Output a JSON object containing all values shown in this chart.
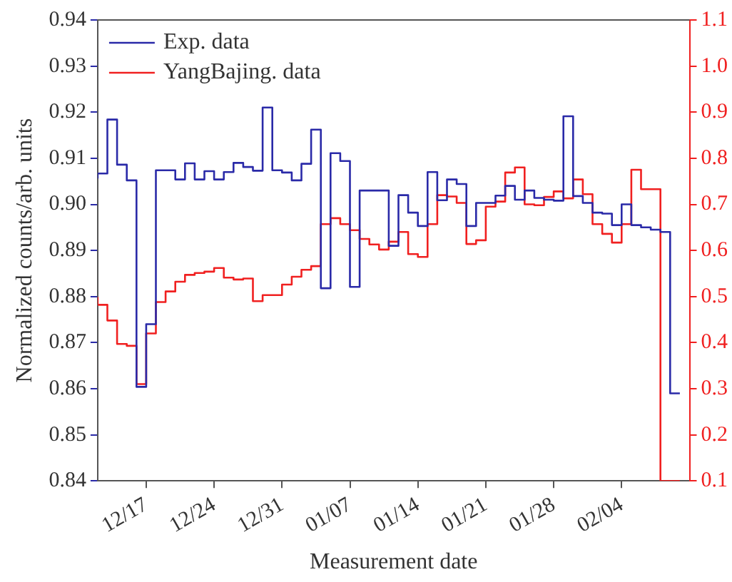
{
  "chart_data": {
    "type": "step",
    "xlabel": "Measurement date",
    "ylabel": "Normalized counts/arb. units",
    "legend": "top left",
    "categories": [
      null,
      null,
      null,
      null,
      null,
      "12/17",
      null,
      null,
      null,
      null,
      null,
      null,
      "12/24",
      null,
      null,
      null,
      null,
      null,
      null,
      "12/31",
      null,
      null,
      null,
      null,
      null,
      null,
      "01/07",
      null,
      null,
      null,
      null,
      null,
      null,
      "01/14",
      null,
      null,
      null,
      null,
      null,
      null,
      "01/21",
      null,
      null,
      null,
      null,
      null,
      null,
      "01/28",
      null,
      null,
      null,
      null,
      null,
      null,
      "02/04",
      null,
      null,
      null,
      null,
      null,
      null
    ],
    "ylim": [
      0.84,
      0.94
    ],
    "yticks": [
      {
        "value": 0.84,
        "label": "0.84"
      },
      {
        "value": 0.85,
        "label": "0.85"
      },
      {
        "value": 0.86,
        "label": "0.86"
      },
      {
        "value": 0.87,
        "label": "0.87"
      },
      {
        "value": 0.88,
        "label": "0.88"
      },
      {
        "value": 0.89,
        "label": "0.89"
      },
      {
        "value": 0.9,
        "label": "0.90"
      },
      {
        "value": 0.91,
        "label": "0.91"
      },
      {
        "value": 0.92,
        "label": "0.92"
      },
      {
        "value": 0.93,
        "label": "0.93"
      },
      {
        "value": 0.94,
        "label": "0.94"
      }
    ],
    "y2lim": [
      0.1,
      1.1
    ],
    "y2ticks": [
      {
        "value": 0.1,
        "label": "0.1"
      },
      {
        "value": 0.2,
        "label": "0.2"
      },
      {
        "value": 0.3,
        "label": "0.3"
      },
      {
        "value": 0.4,
        "label": "0.4"
      },
      {
        "value": 0.5,
        "label": "0.5"
      },
      {
        "value": 0.6,
        "label": "0.6"
      },
      {
        "value": 0.7,
        "label": "0.7"
      },
      {
        "value": 0.8,
        "label": "0.8"
      },
      {
        "value": 0.9,
        "label": "0.9"
      },
      {
        "value": 1,
        "label": "1.0"
      },
      {
        "value": 1.1,
        "label": "1.1"
      }
    ],
    "series": [
      {
        "name": "Exp. data",
        "color": "#2a2aa8",
        "values": [
          0.9056,
          0.9067,
          0.9184,
          0.9086,
          0.9052,
          0.8604,
          0.874,
          0.9074,
          0.9074,
          0.9054,
          0.9089,
          0.9054,
          0.9072,
          0.9054,
          0.907,
          0.909,
          0.9081,
          0.9073,
          0.921,
          0.9074,
          0.9069,
          0.9052,
          0.9088,
          0.9162,
          0.8818,
          0.9111,
          0.9094,
          0.8821,
          0.903,
          0.903,
          0.903,
          0.891,
          0.902,
          0.8982,
          0.8953,
          0.907,
          0.9009,
          0.9054,
          0.9044,
          0.8953,
          0.9003,
          0.9003,
          0.9019,
          0.904,
          0.901,
          0.903,
          0.9014,
          0.901,
          0.9008,
          0.9191,
          0.9018,
          0.9003,
          0.8982,
          0.898,
          0.8955,
          0.9,
          0.8955,
          0.895,
          0.8945,
          0.894,
          0.859
        ]
      },
      {
        "name": "YangBajing. data",
        "color": "#f02020",
        "axis": "y2",
        "values": [
          0.499,
          0.482,
          0.448,
          0.397,
          0.393,
          0.31,
          0.42,
          0.488,
          0.511,
          0.532,
          0.547,
          0.551,
          0.554,
          0.562,
          0.541,
          0.537,
          0.539,
          0.49,
          0.503,
          0.503,
          0.526,
          0.543,
          0.558,
          0.566,
          0.657,
          0.67,
          0.657,
          0.644,
          0.625,
          0.613,
          0.602,
          0.619,
          0.64,
          0.592,
          0.586,
          0.657,
          0.72,
          0.717,
          0.703,
          0.614,
          0.622,
          0.695,
          0.706,
          0.769,
          0.78,
          0.7,
          0.698,
          0.716,
          0.728,
          0.713,
          0.754,
          0.722,
          0.657,
          0.636,
          0.617,
          0.657,
          0.775,
          0.733,
          0.733,
          0.1,
          0.1
        ]
      }
    ]
  }
}
